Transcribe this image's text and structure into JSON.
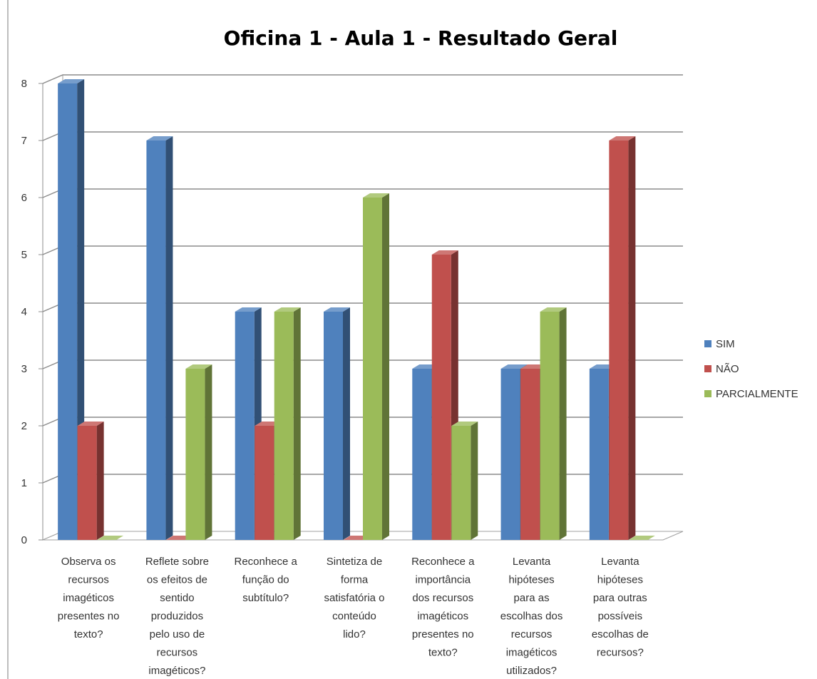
{
  "chart_data": {
    "type": "bar",
    "title": "Oficina 1 - Aula 1 - Resultado Geral",
    "xlabel": "",
    "ylabel": "",
    "ylim": [
      0,
      8
    ],
    "yticks": [
      "0",
      "1",
      "2",
      "3",
      "4",
      "5",
      "6",
      "7",
      "8"
    ],
    "grid": true,
    "legend_position": "right",
    "categories": [
      [
        "Observa os",
        "recursos",
        "imagéticos",
        "presentes no",
        "texto?"
      ],
      [
        "Reflete sobre",
        "os efeitos de",
        "sentido",
        "produzidos",
        "pelo uso de",
        "recursos",
        "imagéticos?"
      ],
      [
        "Reconhece a",
        "função do",
        "subtítulo?"
      ],
      [
        "Sintetiza de",
        "forma",
        "satisfatória o",
        "conteúdo",
        "lido?"
      ],
      [
        "Reconhece a",
        "importância",
        "dos recursos",
        "imagéticos",
        "presentes no",
        "texto?"
      ],
      [
        "Levanta",
        "hipóteses",
        "para as",
        "escolhas dos",
        "recursos",
        "imagéticos",
        "utilizados?"
      ],
      [
        "Levanta",
        "hipóteses",
        "para outras",
        "possíveis",
        "escolhas  de",
        "recursos?"
      ]
    ],
    "series": [
      {
        "name": "SIM",
        "color": "#4F81BD",
        "values": [
          8,
          7,
          4,
          4,
          3,
          3,
          3
        ]
      },
      {
        "name": "NÃO",
        "color": "#C0504D",
        "values": [
          2,
          0,
          2,
          0,
          5,
          3,
          7
        ]
      },
      {
        "name": "PARCIALMENTE",
        "color": "#9BBB59",
        "values": [
          0,
          3,
          4,
          6,
          2,
          4,
          0
        ]
      }
    ]
  }
}
